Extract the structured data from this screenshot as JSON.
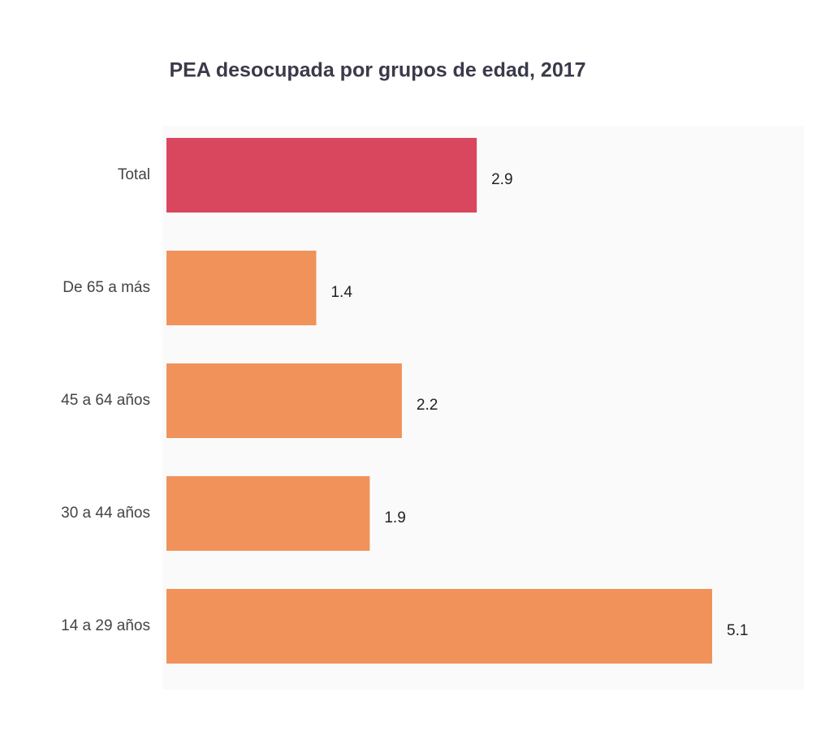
{
  "chart_data": {
    "type": "bar",
    "orientation": "horizontal",
    "title": "PEA desocupada por grupos de edad, 2017",
    "categories": [
      "Total",
      "De 65 a más",
      "45 a 64 años",
      "30 a 44 años",
      "14 a 29 años"
    ],
    "values": [
      2.9,
      1.4,
      2.2,
      1.9,
      5.1
    ],
    "colors": [
      "#d9475f",
      "#f0925a",
      "#f0925a",
      "#f0925a",
      "#f0925a"
    ]
  }
}
